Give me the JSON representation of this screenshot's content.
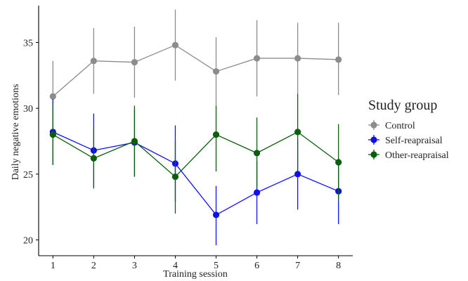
{
  "chart_data": {
    "type": "line",
    "xlabel": "Training session",
    "ylabel": "Daily negative emotions",
    "x": [
      1,
      2,
      3,
      4,
      5,
      6,
      7,
      8
    ],
    "xlim": [
      0.65,
      8.35
    ],
    "ylim": [
      18.8,
      37.8
    ],
    "yticks": [
      20,
      25,
      30,
      35
    ],
    "grid": false,
    "legend": {
      "title": "Study group",
      "position": "right"
    },
    "series": [
      {
        "name": "Control",
        "color": "#8c8c8c",
        "values": [
          30.9,
          33.6,
          33.5,
          34.8,
          32.8,
          33.8,
          33.8,
          33.7
        ],
        "err_low": [
          28.2,
          31.1,
          30.8,
          32.1,
          30.2,
          30.9,
          31.1,
          31.0
        ],
        "err_high": [
          33.6,
          36.1,
          36.2,
          37.5,
          35.4,
          36.7,
          36.5,
          36.5
        ]
      },
      {
        "name": "Self-reapraisal",
        "color": "#1010ee",
        "values": [
          28.2,
          26.8,
          27.4,
          25.8,
          21.9,
          23.6,
          25.0,
          23.7
        ],
        "err_low": [
          25.7,
          24.0,
          24.8,
          22.9,
          19.6,
          21.2,
          22.3,
          21.2
        ],
        "err_high": [
          30.7,
          29.6,
          29.9,
          28.7,
          24.1,
          26.0,
          27.6,
          26.2
        ]
      },
      {
        "name": "Other-reapraisal",
        "color": "#0b5e0b",
        "values": [
          28.0,
          26.2,
          27.5,
          24.8,
          28.0,
          26.6,
          28.2,
          25.9
        ],
        "err_low": [
          25.7,
          23.9,
          24.8,
          22.0,
          25.2,
          24.0,
          25.4,
          23.0
        ],
        "err_high": [
          30.4,
          28.5,
          30.2,
          27.5,
          30.2,
          29.3,
          31.1,
          28.8
        ]
      }
    ]
  }
}
